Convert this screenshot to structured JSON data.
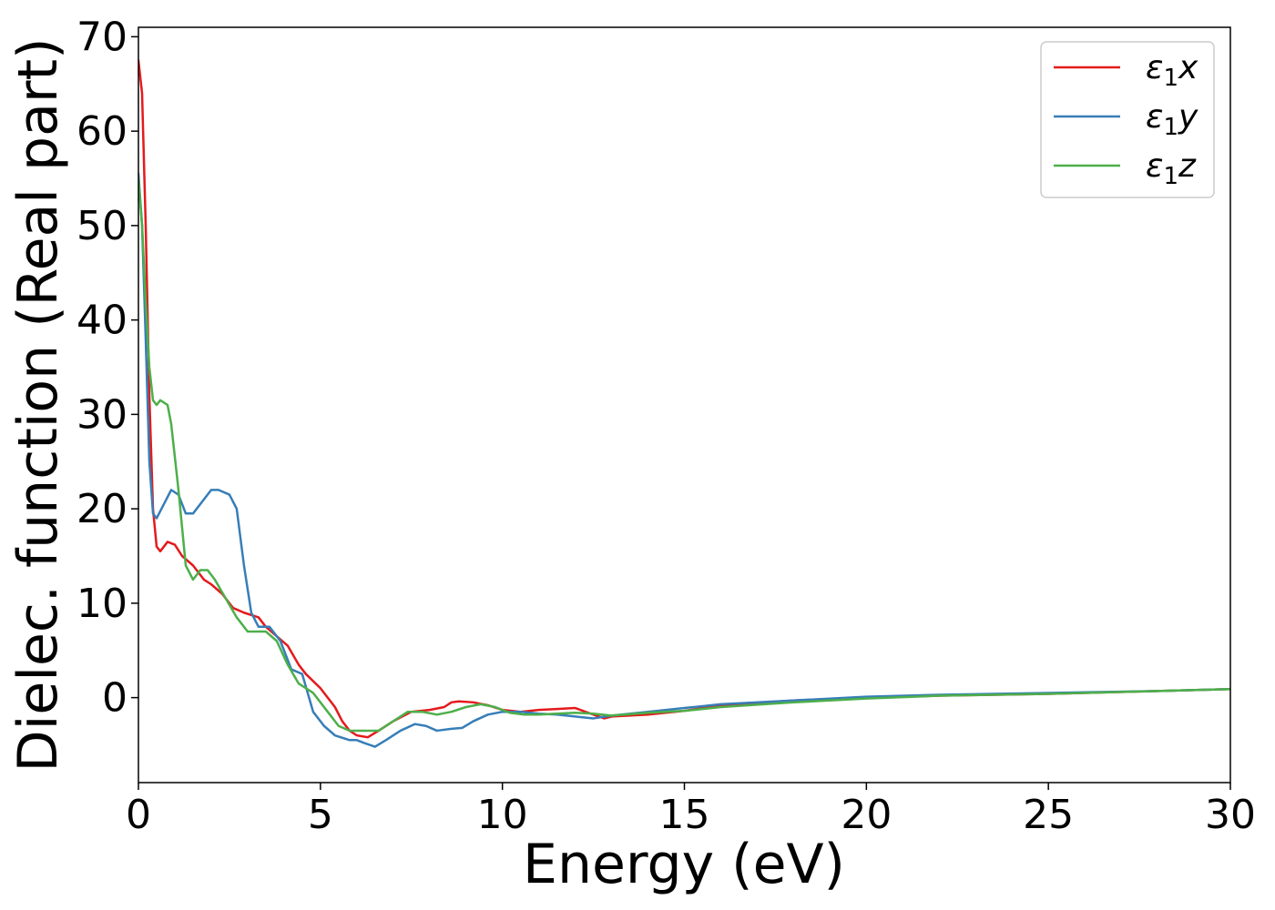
{
  "chart_data": {
    "type": "line",
    "title": "",
    "xlabel": "Energy (eV)",
    "ylabel": "Dielec. function (Real part)",
    "xlim": [
      0,
      30
    ],
    "ylim": [
      -9,
      71
    ],
    "xticks": [
      0,
      5,
      10,
      15,
      20,
      25,
      30
    ],
    "yticks": [
      0,
      10,
      20,
      30,
      40,
      50,
      60,
      70
    ],
    "grid": false,
    "legend_position": "top-right",
    "series": [
      {
        "name": "ε₁x",
        "legend_base": "ε",
        "legend_sub": "1",
        "legend_var": "x",
        "color": "#e41a1c",
        "x": [
          0,
          0.1,
          0.2,
          0.3,
          0.4,
          0.5,
          0.6,
          0.8,
          1.0,
          1.2,
          1.5,
          1.8,
          2.0,
          2.3,
          2.6,
          2.9,
          3.3,
          3.5,
          3.8,
          4.1,
          4.4,
          4.6,
          5.0,
          5.4,
          5.6,
          5.8,
          6.0,
          6.3,
          6.6,
          7.0,
          7.5,
          8.0,
          8.4,
          8.6,
          8.8,
          9.2,
          9.6,
          10.0,
          10.5,
          11.0,
          11.5,
          12.0,
          12.5,
          12.8,
          13.0,
          14.0,
          15.0,
          16.0,
          18.0,
          20.0,
          22.0,
          25.0,
          28.0,
          30.0
        ],
        "values": [
          67.5,
          64,
          50,
          32,
          20,
          16,
          15.5,
          16.5,
          16.2,
          15,
          14,
          12.5,
          12,
          11,
          9.5,
          9,
          8.5,
          7.5,
          6.5,
          5.5,
          3.5,
          2.5,
          1,
          -1,
          -2.5,
          -3.5,
          -4,
          -4.2,
          -3.5,
          -2.5,
          -1.5,
          -1.3,
          -1,
          -0.5,
          -0.4,
          -0.5,
          -0.8,
          -1.3,
          -1.5,
          -1.3,
          -1.2,
          -1.1,
          -1.8,
          -2.2,
          -2,
          -1.8,
          -1.4,
          -0.8,
          -0.3,
          0,
          0.2,
          0.4,
          0.7,
          0.9
        ]
      },
      {
        "name": "ε₁y",
        "legend_base": "ε",
        "legend_sub": "1",
        "legend_var": "y",
        "color": "#377eb8",
        "x": [
          0,
          0.1,
          0.2,
          0.3,
          0.4,
          0.5,
          0.7,
          0.9,
          1.1,
          1.3,
          1.5,
          1.8,
          2.0,
          2.2,
          2.5,
          2.7,
          2.9,
          3.1,
          3.3,
          3.6,
          3.9,
          4.2,
          4.5,
          4.8,
          5.1,
          5.4,
          5.8,
          6.0,
          6.2,
          6.5,
          6.8,
          7.2,
          7.6,
          7.9,
          8.2,
          8.6,
          8.9,
          9.2,
          9.6,
          10.0,
          10.5,
          11.0,
          11.5,
          12.0,
          12.5,
          13.0,
          14.0,
          15.0,
          16.0,
          18.0,
          20.0,
          22.0,
          25.0,
          28.0,
          30.0
        ],
        "values": [
          55.5,
          50,
          38,
          25,
          19.5,
          19,
          20.5,
          22,
          21.5,
          19.5,
          19.5,
          21,
          22,
          22,
          21.5,
          20,
          14,
          9,
          7.5,
          7.5,
          6,
          3,
          2.5,
          -1.5,
          -3,
          -4,
          -4.5,
          -4.5,
          -4.8,
          -5.2,
          -4.5,
          -3.5,
          -2.8,
          -3,
          -3.5,
          -3.3,
          -3.2,
          -2.5,
          -1.8,
          -1.5,
          -1.5,
          -1.7,
          -1.8,
          -2,
          -2.2,
          -1.9,
          -1.5,
          -1.1,
          -0.7,
          -0.3,
          0.1,
          0.3,
          0.5,
          0.7,
          0.9
        ]
      },
      {
        "name": "ε₁z",
        "legend_base": "ε",
        "legend_sub": "1",
        "legend_var": "z",
        "color": "#4daf4a",
        "x": [
          0,
          0.1,
          0.2,
          0.3,
          0.4,
          0.5,
          0.6,
          0.8,
          0.9,
          1.1,
          1.3,
          1.5,
          1.7,
          1.9,
          2.1,
          2.4,
          2.7,
          3.0,
          3.2,
          3.5,
          3.8,
          4.1,
          4.4,
          4.8,
          5.2,
          5.5,
          5.8,
          6.2,
          6.6,
          7.0,
          7.4,
          7.8,
          8.2,
          8.6,
          9.0,
          9.4,
          9.8,
          10.2,
          10.6,
          11.0,
          11.5,
          12.0,
          12.5,
          13.0,
          14.0,
          15.0,
          16.0,
          18.0,
          20.0,
          22.0,
          25.0,
          28.0,
          30.0
        ],
        "values": [
          55,
          50,
          42,
          35,
          31.5,
          31,
          31.5,
          31,
          29,
          22,
          14,
          12.5,
          13.5,
          13.5,
          12.5,
          10.5,
          8.5,
          7,
          7,
          7,
          6,
          3.5,
          1.5,
          0.5,
          -1.5,
          -3,
          -3.5,
          -3.5,
          -3.5,
          -2.5,
          -1.5,
          -1.5,
          -1.8,
          -1.5,
          -1,
          -0.7,
          -1,
          -1.6,
          -1.8,
          -1.8,
          -1.7,
          -1.6,
          -1.7,
          -1.9,
          -1.6,
          -1.4,
          -1,
          -0.5,
          -0.1,
          0.2,
          0.4,
          0.7,
          0.9
        ]
      }
    ]
  }
}
